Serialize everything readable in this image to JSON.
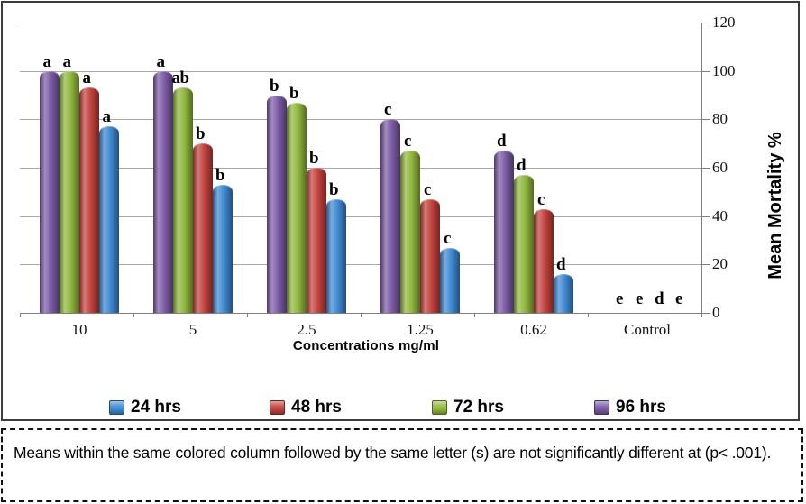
{
  "chart_data": {
    "type": "bar",
    "title": "",
    "categories": [
      "10",
      "5",
      "2.5",
      "1.25",
      "0.62",
      "Control"
    ],
    "xlabel": "Concentrations mg/ml",
    "ylabel": "Mean Mortality %",
    "ylim": [
      0,
      120
    ],
    "yticks": [
      0,
      20,
      40,
      60,
      80,
      100,
      120
    ],
    "grid": true,
    "legend_position": "bottom",
    "series": [
      {
        "name": "96 hrs",
        "color": "#7B5BA5",
        "values": [
          100,
          100,
          90,
          80,
          67,
          0
        ],
        "sig_letters": [
          "a",
          "a",
          "b",
          "c",
          "d",
          "e"
        ]
      },
      {
        "name": "72 hrs",
        "color": "#90B73C",
        "values": [
          100,
          93,
          87,
          67,
          57,
          0
        ],
        "sig_letters": [
          "a",
          "ab",
          "b",
          "c",
          "d",
          "e"
        ]
      },
      {
        "name": "48 hrs",
        "color": "#C2423D",
        "values": [
          93,
          70,
          60,
          47,
          43,
          0
        ],
        "sig_letters": [
          "a",
          "b",
          "b",
          "c",
          "c",
          "d"
        ]
      },
      {
        "name": "24 hrs",
        "color": "#3E89D2",
        "values": [
          77,
          53,
          47,
          27,
          16,
          0
        ],
        "sig_letters": [
          "a",
          "b",
          "b",
          "c",
          "d",
          "e"
        ]
      }
    ],
    "legend": [
      {
        "label": "24 hrs",
        "color": "#3E89D2"
      },
      {
        "label": "48 hrs",
        "color": "#C2423D"
      },
      {
        "label": "72 hrs",
        "color": "#90B73C"
      },
      {
        "label": "96 hrs",
        "color": "#7B5BA5"
      }
    ]
  },
  "caption": {
    "text": "Means within the same colored column followed by the same letter (s) are not significantly different at (p< .001)."
  }
}
